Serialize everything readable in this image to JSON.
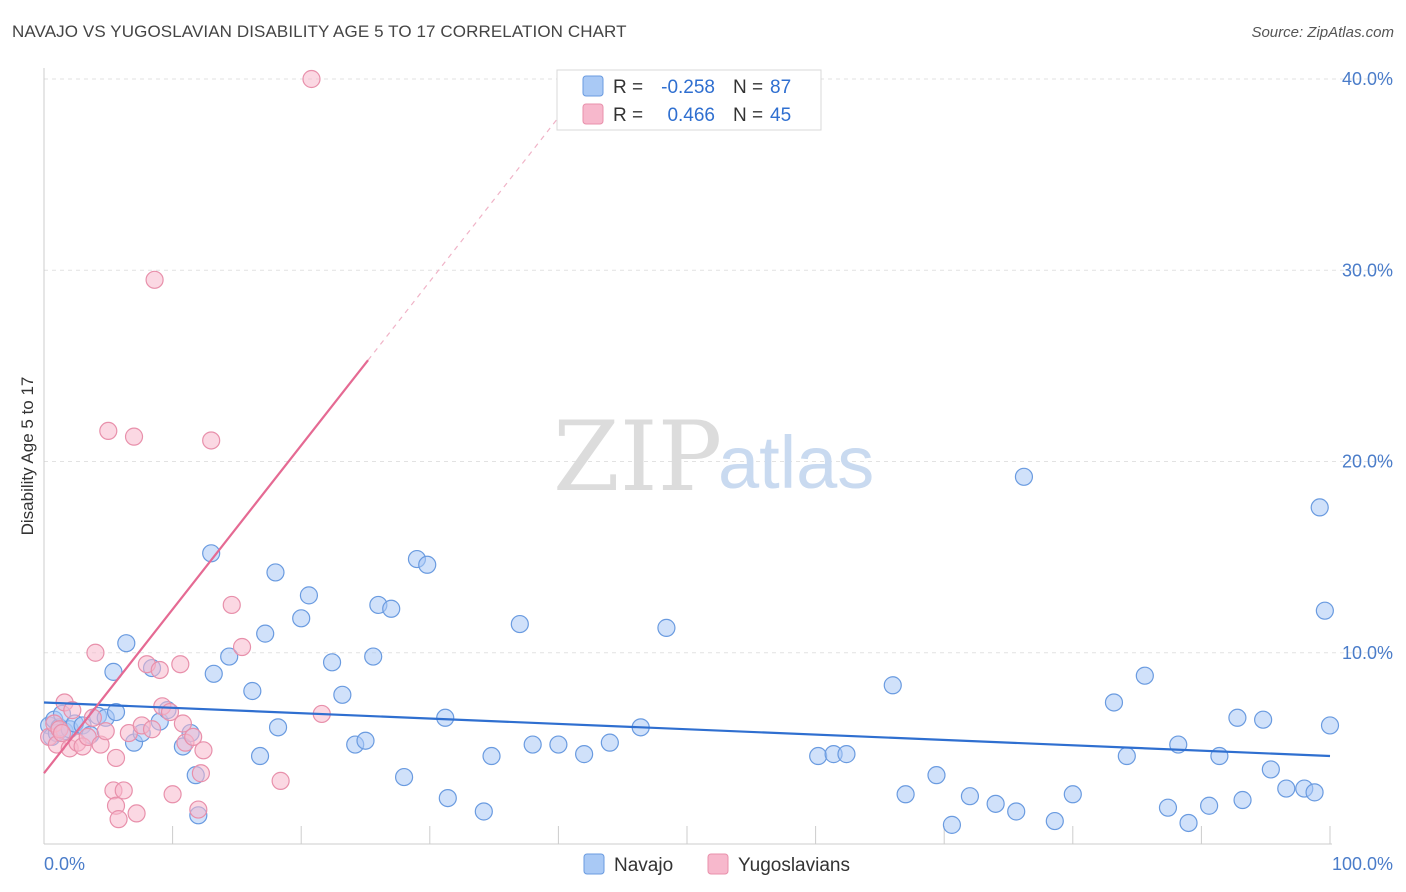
{
  "header": {
    "title": "NAVAJO VS YUGOSLAVIAN DISABILITY AGE 5 TO 17 CORRELATION CHART",
    "source": "Source: ZipAtlas.com"
  },
  "watermark": {
    "zip": "ZIP",
    "atlas": "atlas"
  },
  "legend": {
    "rows": [
      {
        "r_label": "R =",
        "r_value": "-0.258",
        "n_label": "N =",
        "n_value": "87",
        "color": "#a9c9f5",
        "stroke": "#6a9be0"
      },
      {
        "r_label": "R =",
        "r_value": "0.466",
        "n_label": "N =",
        "n_value": "45",
        "color": "#f7b8cc",
        "stroke": "#e890ab"
      }
    ]
  },
  "bottom_legend": [
    {
      "label": "Navajo",
      "color": "#a9c9f5",
      "stroke": "#6a9be0"
    },
    {
      "label": "Yugoslavians",
      "color": "#f7b8cc",
      "stroke": "#e890ab"
    }
  ],
  "chart_data": {
    "type": "scatter",
    "title": "NAVAJO VS YUGOSLAVIAN DISABILITY AGE 5 TO 17 CORRELATION CHART",
    "xlabel": "",
    "ylabel": "Disability Age 5 to 17",
    "xlim": [
      0,
      100
    ],
    "ylim": [
      0,
      42
    ],
    "x_tick_labels": [
      "0.0%",
      "100.0%"
    ],
    "y_ticks": [
      10,
      20,
      30,
      40
    ],
    "y_tick_labels": [
      "10.0%",
      "20.0%",
      "30.0%",
      "40.0%"
    ],
    "grid": true,
    "series": [
      {
        "name": "Navajo",
        "color": "#a9c9f5",
        "stroke": "#6a9be0",
        "trend_color": "#2f6fd0",
        "trend": {
          "x0": 0,
          "y0": 7.4,
          "x1": 100,
          "y1": 4.6
        },
        "points": [
          [
            0.4,
            6.2
          ],
          [
            0.6,
            5.6
          ],
          [
            0.8,
            6.5
          ],
          [
            1.0,
            5.8
          ],
          [
            1.2,
            6.1
          ],
          [
            1.4,
            6.8
          ],
          [
            1.6,
            5.9
          ],
          [
            2.0,
            6.0
          ],
          [
            2.4,
            6.3
          ],
          [
            3.0,
            6.2
          ],
          [
            3.6,
            5.7
          ],
          [
            4.2,
            6.7
          ],
          [
            4.8,
            6.6
          ],
          [
            5.4,
            9.0
          ],
          [
            5.6,
            6.9
          ],
          [
            6.4,
            10.5
          ],
          [
            7.0,
            5.3
          ],
          [
            7.6,
            5.8
          ],
          [
            8.4,
            9.2
          ],
          [
            9.0,
            6.4
          ],
          [
            9.6,
            7.0
          ],
          [
            10.8,
            5.1
          ],
          [
            11.4,
            5.8
          ],
          [
            11.8,
            3.6
          ],
          [
            12.0,
            1.5
          ],
          [
            13.0,
            15.2
          ],
          [
            13.2,
            8.9
          ],
          [
            14.4,
            9.8
          ],
          [
            16.2,
            8.0
          ],
          [
            16.8,
            4.6
          ],
          [
            17.2,
            11.0
          ],
          [
            18.0,
            14.2
          ],
          [
            18.2,
            6.1
          ],
          [
            20.0,
            11.8
          ],
          [
            20.6,
            13.0
          ],
          [
            22.4,
            9.5
          ],
          [
            23.2,
            7.8
          ],
          [
            24.2,
            5.2
          ],
          [
            25.0,
            5.4
          ],
          [
            25.6,
            9.8
          ],
          [
            26.0,
            12.5
          ],
          [
            27.0,
            12.3
          ],
          [
            28.0,
            3.5
          ],
          [
            29.0,
            14.9
          ],
          [
            29.8,
            14.6
          ],
          [
            31.2,
            6.6
          ],
          [
            31.4,
            2.4
          ],
          [
            34.2,
            1.7
          ],
          [
            34.8,
            4.6
          ],
          [
            37.0,
            11.5
          ],
          [
            38.0,
            5.2
          ],
          [
            40.0,
            5.2
          ],
          [
            42.0,
            4.7
          ],
          [
            44.0,
            5.3
          ],
          [
            46.4,
            6.1
          ],
          [
            48.4,
            11.3
          ],
          [
            60.2,
            4.6
          ],
          [
            61.4,
            4.7
          ],
          [
            62.4,
            4.7
          ],
          [
            66.0,
            8.3
          ],
          [
            67.0,
            2.6
          ],
          [
            69.4,
            3.6
          ],
          [
            70.6,
            1.0
          ],
          [
            72.0,
            2.5
          ],
          [
            74.0,
            2.1
          ],
          [
            75.6,
            1.7
          ],
          [
            76.2,
            19.2
          ],
          [
            78.6,
            1.2
          ],
          [
            80.0,
            2.6
          ],
          [
            83.2,
            7.4
          ],
          [
            84.2,
            4.6
          ],
          [
            85.6,
            8.8
          ],
          [
            87.4,
            1.9
          ],
          [
            88.2,
            5.2
          ],
          [
            89.0,
            1.1
          ],
          [
            90.6,
            2.0
          ],
          [
            91.4,
            4.6
          ],
          [
            92.8,
            6.6
          ],
          [
            93.2,
            2.3
          ],
          [
            94.8,
            6.5
          ],
          [
            95.4,
            3.9
          ],
          [
            96.6,
            2.9
          ],
          [
            98.0,
            2.9
          ],
          [
            98.8,
            2.7
          ],
          [
            99.2,
            17.6
          ],
          [
            99.6,
            12.2
          ],
          [
            100.0,
            6.2
          ]
        ]
      },
      {
        "name": "Yugoslavians",
        "color": "#f7b8cc",
        "stroke": "#e890ab",
        "trend_color": "#e56a93",
        "trend": {
          "x0": 0,
          "y0": 3.7,
          "x1": 25.2,
          "y1": 25.3,
          "x_dash_end": 40.0
        },
        "points": [
          [
            0.4,
            5.6
          ],
          [
            0.8,
            6.3
          ],
          [
            1.0,
            5.2
          ],
          [
            1.2,
            6.0
          ],
          [
            1.4,
            5.8
          ],
          [
            1.6,
            7.4
          ],
          [
            2.0,
            5.0
          ],
          [
            2.2,
            7.0
          ],
          [
            2.6,
            5.3
          ],
          [
            3.0,
            5.1
          ],
          [
            3.4,
            5.6
          ],
          [
            3.8,
            6.6
          ],
          [
            4.0,
            10.0
          ],
          [
            4.4,
            5.2
          ],
          [
            4.8,
            5.9
          ],
          [
            5.0,
            21.6
          ],
          [
            5.4,
            2.8
          ],
          [
            5.6,
            4.5
          ],
          [
            5.6,
            2.0
          ],
          [
            5.8,
            1.3
          ],
          [
            6.2,
            2.8
          ],
          [
            6.6,
            5.8
          ],
          [
            7.0,
            21.3
          ],
          [
            7.2,
            1.6
          ],
          [
            7.6,
            6.2
          ],
          [
            8.0,
            9.4
          ],
          [
            8.4,
            6.0
          ],
          [
            8.6,
            29.5
          ],
          [
            9.0,
            9.1
          ],
          [
            9.2,
            7.2
          ],
          [
            9.8,
            6.9
          ],
          [
            10.0,
            2.6
          ],
          [
            10.6,
            9.4
          ],
          [
            10.8,
            6.3
          ],
          [
            11.0,
            5.3
          ],
          [
            12.0,
            1.8
          ],
          [
            12.2,
            3.7
          ],
          [
            11.6,
            5.6
          ],
          [
            12.4,
            4.9
          ],
          [
            13.0,
            21.1
          ],
          [
            14.6,
            12.5
          ],
          [
            15.4,
            10.3
          ],
          [
            18.4,
            3.3
          ],
          [
            20.8,
            40.0
          ],
          [
            21.6,
            6.8
          ]
        ]
      }
    ]
  }
}
